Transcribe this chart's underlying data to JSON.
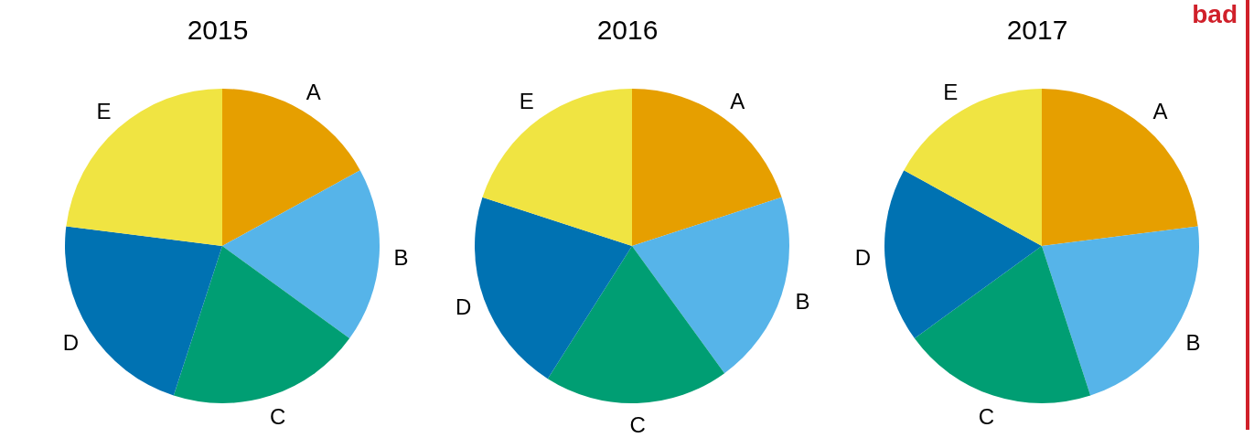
{
  "chart_data": [
    {
      "type": "pie",
      "title": "2015",
      "categories": [
        "A",
        "B",
        "C",
        "D",
        "E"
      ],
      "values": [
        17,
        18,
        20,
        22,
        23
      ],
      "colors": [
        "#e69f00",
        "#56b4e9",
        "#009e73",
        "#0072b2",
        "#f0e442"
      ]
    },
    {
      "type": "pie",
      "title": "2016",
      "categories": [
        "A",
        "B",
        "C",
        "D",
        "E"
      ],
      "values": [
        20,
        20,
        19,
        21,
        20
      ],
      "colors": [
        "#e69f00",
        "#56b4e9",
        "#009e73",
        "#0072b2",
        "#f0e442"
      ]
    },
    {
      "type": "pie",
      "title": "2017",
      "categories": [
        "A",
        "B",
        "C",
        "D",
        "E"
      ],
      "values": [
        23,
        22,
        20,
        18,
        17
      ],
      "colors": [
        "#e69f00",
        "#56b4e9",
        "#009e73",
        "#0072b2",
        "#f0e442"
      ],
      "annotations": [
        "bad"
      ]
    }
  ]
}
